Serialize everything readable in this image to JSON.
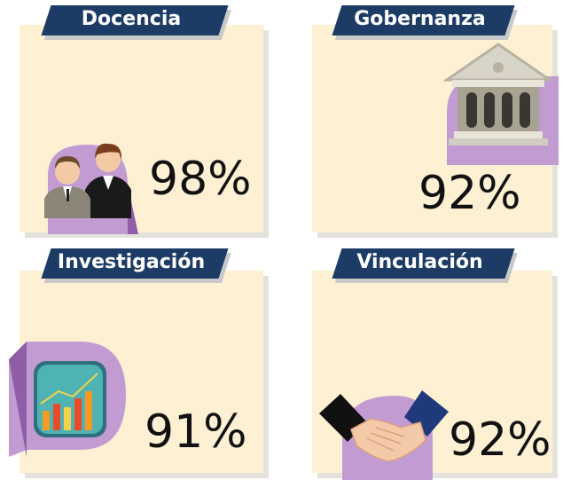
{
  "cards": [
    {
      "title": "Docencia",
      "value": "98%"
    },
    {
      "title": "Gobernanza",
      "value": "92%"
    },
    {
      "title": "Investigación",
      "value": "91%"
    },
    {
      "title": "Vinculación",
      "value": "92%"
    }
  ]
}
